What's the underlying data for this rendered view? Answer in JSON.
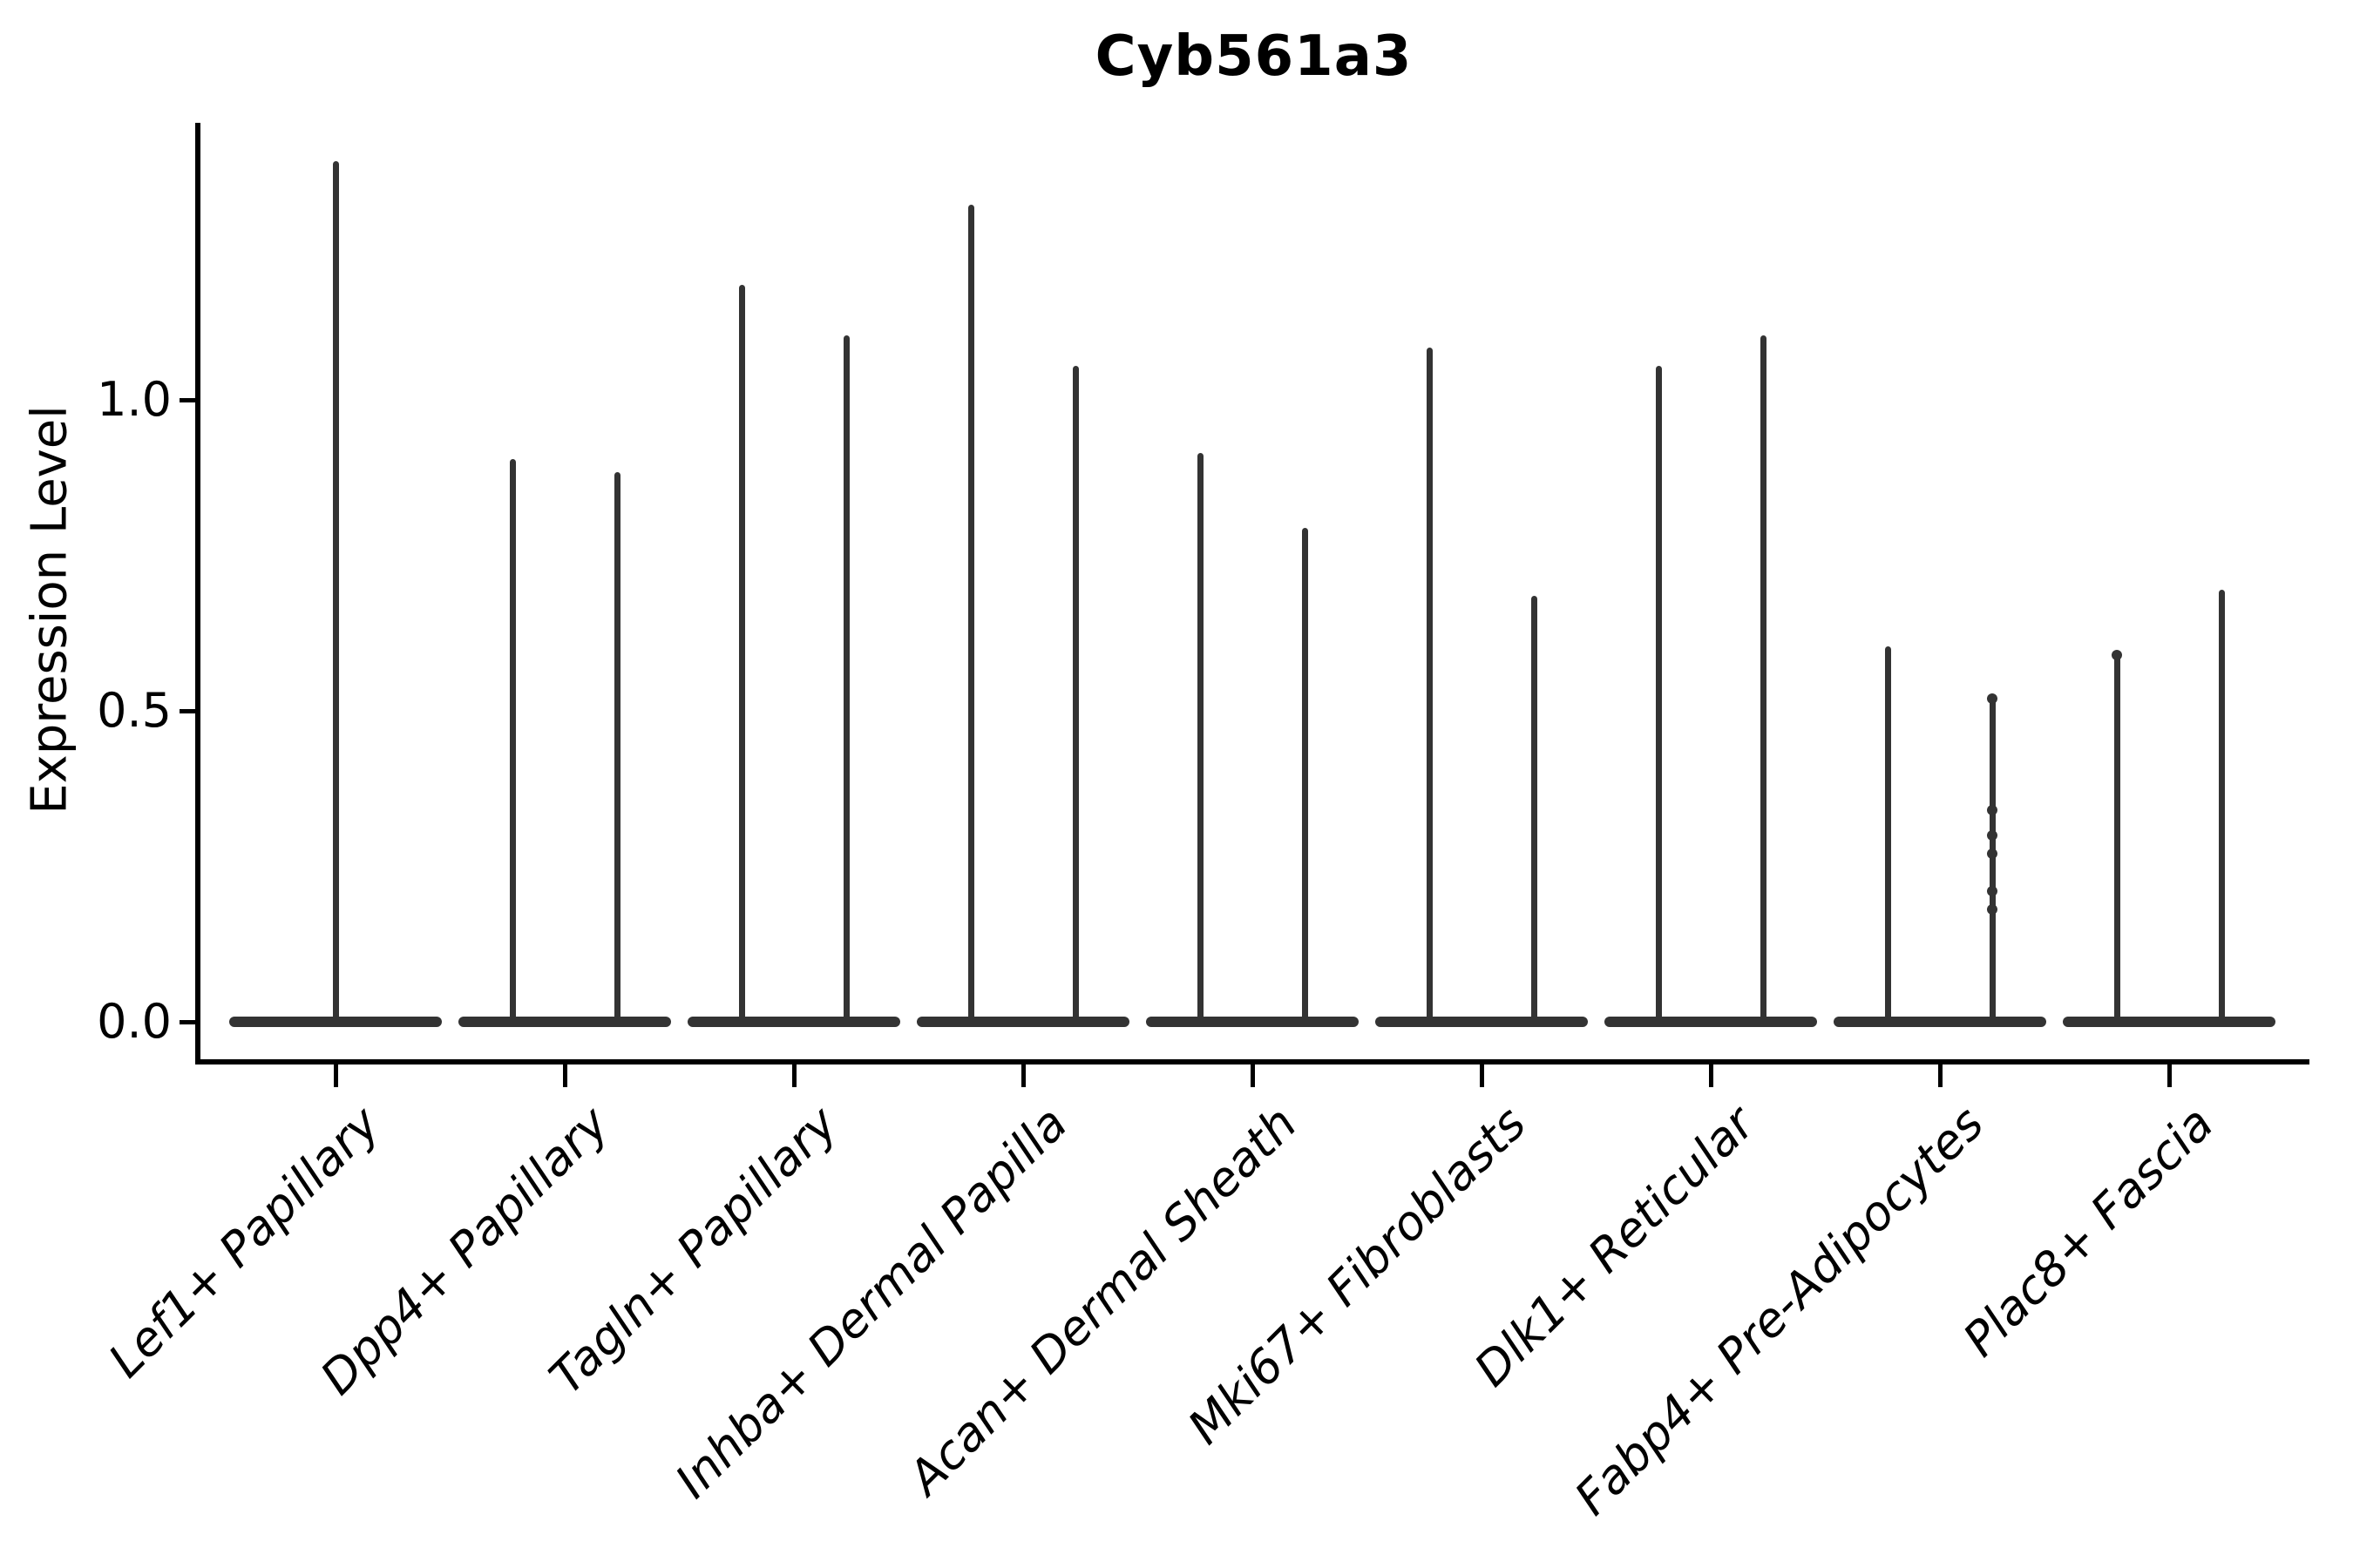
{
  "title": "Cyb561a3",
  "axes": {
    "ylabel": "Expression Level",
    "ytick_labels": [
      "0.0",
      "0.5",
      "1.0"
    ]
  },
  "chart_data": {
    "type": "violin",
    "title": "Cyb561a3",
    "xlabel": "",
    "ylabel": "Expression Level",
    "legend": "none",
    "grid": false,
    "ylim": [
      -0.06,
      1.45
    ],
    "yticks": [
      0.0,
      0.5,
      1.0
    ],
    "categories": [
      "Lef1+ Papillary",
      "Dpp4+ Papillary",
      "Tagln+ Papillary",
      "Inhba+ Dermal Papilla",
      "Acan+ Dermal Sheath",
      "Mki67+ Fibroblasts",
      "Dlk1+ Reticular",
      "Fabp4+ Pre-Adipocytes",
      "Plac8+ Fascia"
    ],
    "description": "Violin plot of a sparsely expressed gene: each cell type shows a wide flat violin base at expression 0 with one or two thin needle spikes reaching the listed maximum expression values.",
    "violins": [
      {
        "category": "Lef1+ Papillary",
        "spike_offsets": [
          0
        ],
        "spike_max": [
          1.38
        ],
        "points": []
      },
      {
        "category": "Dpp4+ Papillary",
        "spike_offsets": [
          -60,
          60
        ],
        "spike_max": [
          0.9,
          0.88
        ],
        "points": []
      },
      {
        "category": "Tagln+ Papillary",
        "spike_offsets": [
          -60,
          60
        ],
        "spike_max": [
          1.18,
          1.1
        ],
        "points": []
      },
      {
        "category": "Inhba+ Dermal Papilla",
        "spike_offsets": [
          -60,
          60
        ],
        "spike_max": [
          1.31,
          1.05
        ],
        "points": []
      },
      {
        "category": "Acan+ Dermal Sheath",
        "spike_offsets": [
          -60,
          60
        ],
        "spike_max": [
          0.91,
          0.79
        ],
        "points": []
      },
      {
        "category": "Mki67+ Fibroblasts",
        "spike_offsets": [
          -60,
          60
        ],
        "spike_max": [
          1.08,
          0.68
        ],
        "points": []
      },
      {
        "category": "Dlk1+ Reticular",
        "spike_offsets": [
          -60,
          60
        ],
        "spike_max": [
          1.05,
          1.1
        ],
        "points": []
      },
      {
        "category": "Fabp4+ Pre-Adipocytes",
        "spike_offsets": [
          -60,
          60
        ],
        "spike_max": [
          0.6,
          0.52
        ],
        "points": [
          {
            "offset": 60,
            "values": [
              0.52,
              0.34,
              0.3,
              0.27,
              0.21,
              0.18
            ]
          }
        ]
      },
      {
        "category": "Plac8+ Fascia",
        "spike_offsets": [
          -60,
          60
        ],
        "spike_max": [
          0.59,
          0.69
        ],
        "points": [
          {
            "offset": -60,
            "values": [
              0.59
            ]
          }
        ]
      }
    ]
  }
}
